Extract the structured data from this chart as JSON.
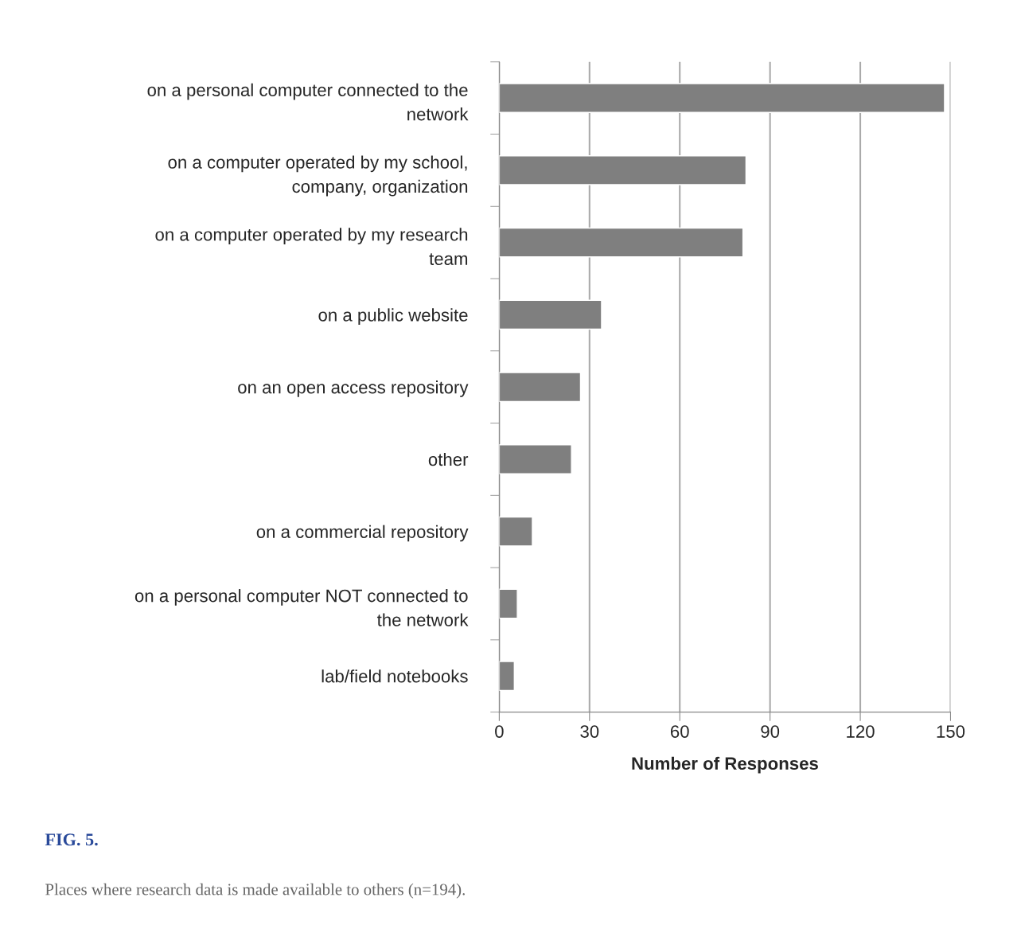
{
  "chart_data": {
    "type": "bar",
    "orientation": "horizontal",
    "categories": [
      "on a personal computer connected to the\nnetwork",
      "on a computer operated by my school,\ncompany, organization",
      "on a computer operated by my research\nteam",
      "on a public website",
      "on an open access repository",
      "other",
      "on a commercial repository",
      "on a personal computer NOT connected to\nthe network",
      "lab/field notebooks"
    ],
    "values": [
      148,
      82,
      81,
      34,
      27,
      24,
      11,
      6,
      5
    ],
    "color": "#7f7f7f",
    "xlabel": "Number of Responses",
    "xlim": [
      0,
      150
    ],
    "xticks": [
      0,
      30,
      60,
      90,
      120,
      150
    ],
    "grid": "x",
    "annotations": [
      "FIG. 5.",
      "Places where research data is made available to others (n=194)."
    ]
  }
}
